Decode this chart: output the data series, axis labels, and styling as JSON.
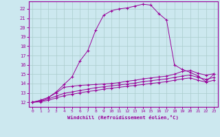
{
  "xlabel": "Windchill (Refroidissement éolien,°C)",
  "background_color": "#cce8ef",
  "line_color": "#990099",
  "grid_color": "#aacccc",
  "xlim": [
    -0.5,
    23.5
  ],
  "ylim": [
    11.5,
    22.8
  ],
  "xticks": [
    0,
    1,
    2,
    3,
    4,
    5,
    6,
    7,
    8,
    9,
    10,
    11,
    12,
    13,
    14,
    15,
    16,
    17,
    18,
    19,
    20,
    21,
    22,
    23
  ],
  "yticks": [
    12,
    13,
    14,
    15,
    16,
    17,
    18,
    19,
    20,
    21,
    22
  ],
  "line1_x": [
    0,
    1,
    2,
    3,
    4,
    5,
    6,
    7,
    8,
    9,
    10,
    11,
    12,
    13,
    14,
    15,
    16,
    17,
    18,
    19,
    20,
    21,
    22,
    23
  ],
  "line1_y": [
    12.0,
    12.2,
    12.5,
    13.1,
    13.9,
    14.7,
    16.4,
    17.5,
    19.7,
    21.3,
    21.8,
    22.0,
    22.1,
    22.3,
    22.5,
    22.4,
    21.5,
    20.8,
    16.0,
    15.5,
    15.2,
    14.8,
    14.2,
    15.0
  ],
  "line2_x": [
    0,
    1,
    2,
    3,
    4,
    5,
    6,
    7,
    8,
    9,
    10,
    11,
    12,
    13,
    14,
    15,
    16,
    17,
    18,
    19,
    20,
    21,
    22,
    23
  ],
  "line2_y": [
    12.0,
    12.2,
    12.5,
    13.0,
    13.6,
    13.7,
    13.8,
    13.85,
    13.9,
    13.95,
    14.0,
    14.1,
    14.25,
    14.35,
    14.5,
    14.6,
    14.7,
    14.8,
    15.0,
    15.3,
    15.4,
    15.1,
    14.9,
    15.05
  ],
  "line3_x": [
    0,
    1,
    2,
    3,
    4,
    5,
    6,
    7,
    8,
    9,
    10,
    11,
    12,
    13,
    14,
    15,
    16,
    17,
    18,
    19,
    20,
    21,
    22,
    23
  ],
  "line3_y": [
    12.0,
    12.1,
    12.35,
    12.65,
    12.95,
    13.1,
    13.25,
    13.4,
    13.55,
    13.65,
    13.75,
    13.85,
    13.95,
    14.05,
    14.2,
    14.3,
    14.4,
    14.5,
    14.65,
    14.8,
    14.9,
    14.65,
    14.45,
    14.65
  ],
  "line4_x": [
    0,
    1,
    2,
    3,
    4,
    5,
    6,
    7,
    8,
    9,
    10,
    11,
    12,
    13,
    14,
    15,
    16,
    17,
    18,
    19,
    20,
    21,
    22,
    23
  ],
  "line4_y": [
    12.0,
    12.05,
    12.2,
    12.45,
    12.7,
    12.85,
    13.0,
    13.15,
    13.25,
    13.4,
    13.5,
    13.6,
    13.7,
    13.8,
    13.9,
    14.0,
    14.1,
    14.2,
    14.35,
    14.5,
    14.6,
    14.35,
    14.15,
    14.35
  ]
}
